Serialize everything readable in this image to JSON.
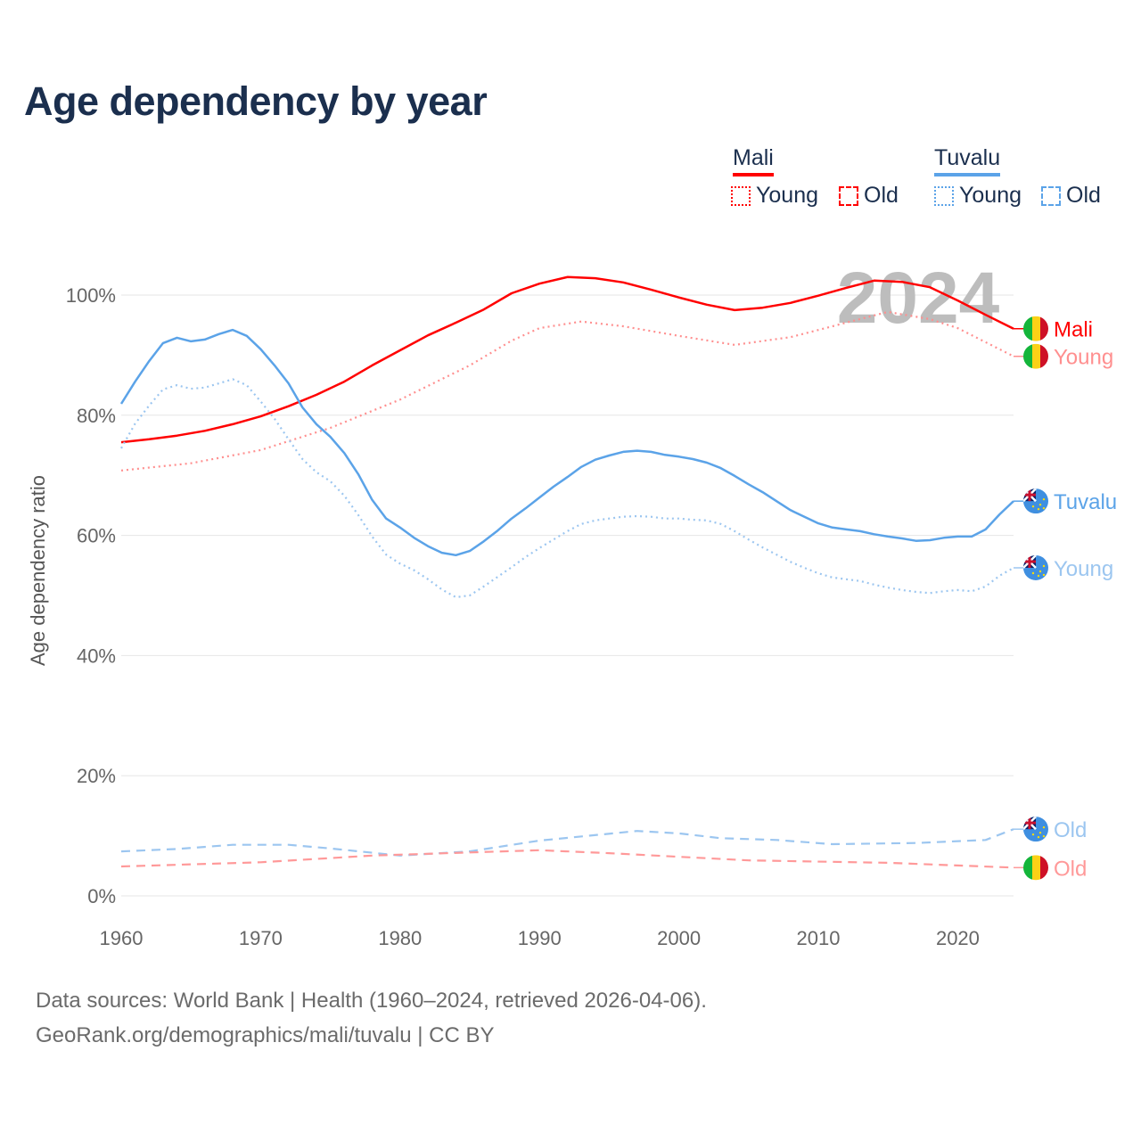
{
  "title": "Age dependency by year",
  "legend": {
    "countries": [
      {
        "name": "Mali",
        "color": "#ff0000",
        "items": [
          "Young",
          "Old"
        ]
      },
      {
        "name": "Tuvalu",
        "color": "#5ba3e8",
        "items": [
          "Young",
          "Old"
        ]
      }
    ]
  },
  "footer": {
    "line1": "Data sources: World Bank | Health (1960–2024, retrieved 2026-04-06).",
    "line2": "GeoRank.org/demographics/mali/tuvalu | CC BY"
  },
  "chart_data": {
    "type": "line",
    "title": "Age dependency by year",
    "xlabel": "",
    "ylabel": "Age dependency ratio",
    "xlim": [
      1960,
      2024
    ],
    "ylim": [
      0,
      110
    ],
    "x_ticks": [
      "1960",
      "1970",
      "1980",
      "1990",
      "2000",
      "2010",
      "2020"
    ],
    "y_ticks": [
      "0%",
      "20%",
      "40%",
      "60%",
      "80%",
      "100%"
    ],
    "year_watermark": "2024",
    "grid": true,
    "legend_position": "top-right",
    "series": [
      {
        "name": "Mali",
        "label": "Mali",
        "color": "#ff0000",
        "style": "solid",
        "flag": "mali",
        "points": [
          [
            1960,
            75.5
          ],
          [
            1962,
            76
          ],
          [
            1964,
            76.6
          ],
          [
            1966,
            77.4
          ],
          [
            1968,
            78.5
          ],
          [
            1970,
            79.8
          ],
          [
            1972,
            81.5
          ],
          [
            1974,
            83.4
          ],
          [
            1976,
            85.6
          ],
          [
            1978,
            88.3
          ],
          [
            1980,
            90.8
          ],
          [
            1982,
            93.3
          ],
          [
            1984,
            95.4
          ],
          [
            1986,
            97.6
          ],
          [
            1988,
            100.3
          ],
          [
            1990,
            101.9
          ],
          [
            1992,
            103
          ],
          [
            1994,
            102.8
          ],
          [
            1996,
            102.1
          ],
          [
            1998,
            100.9
          ],
          [
            2000,
            99.6
          ],
          [
            2002,
            98.4
          ],
          [
            2004,
            97.5
          ],
          [
            2006,
            97.9
          ],
          [
            2008,
            98.7
          ],
          [
            2010,
            99.9
          ],
          [
            2012,
            101.2
          ],
          [
            2014,
            102.4
          ],
          [
            2016,
            102.2
          ],
          [
            2018,
            101.3
          ],
          [
            2020,
            99.1
          ],
          [
            2022,
            96.7
          ],
          [
            2024,
            94.4
          ]
        ]
      },
      {
        "name": "Mali Young",
        "label": "Young",
        "color": "#ff8f8f",
        "style": "dotted",
        "flag": "mali",
        "points": [
          [
            1960,
            70.8
          ],
          [
            1965,
            72
          ],
          [
            1970,
            74.2
          ],
          [
            1975,
            77.9
          ],
          [
            1980,
            82.6
          ],
          [
            1985,
            88.3
          ],
          [
            1988,
            92.4
          ],
          [
            1990,
            94.5
          ],
          [
            1993,
            95.6
          ],
          [
            1996,
            94.8
          ],
          [
            2000,
            93.2
          ],
          [
            2004,
            91.7
          ],
          [
            2008,
            93
          ],
          [
            2012,
            95.4
          ],
          [
            2015,
            97.2
          ],
          [
            2018,
            96
          ],
          [
            2020,
            94.5
          ],
          [
            2024,
            89.8
          ]
        ]
      },
      {
        "name": "Tuvalu",
        "label": "Tuvalu",
        "color": "#5ba3e8",
        "style": "solid",
        "flag": "tuvalu",
        "points": [
          [
            1960,
            81.9
          ],
          [
            1961,
            85.6
          ],
          [
            1962,
            89
          ],
          [
            1963,
            92
          ],
          [
            1964,
            92.9
          ],
          [
            1965,
            92.3
          ],
          [
            1966,
            92.6
          ],
          [
            1967,
            93.5
          ],
          [
            1968,
            94.2
          ],
          [
            1969,
            93.2
          ],
          [
            1970,
            91
          ],
          [
            1971,
            88.3
          ],
          [
            1972,
            85.3
          ],
          [
            1973,
            81.3
          ],
          [
            1974,
            78.5
          ],
          [
            1975,
            76.4
          ],
          [
            1976,
            73.7
          ],
          [
            1977,
            70.2
          ],
          [
            1978,
            65.9
          ],
          [
            1979,
            62.8
          ],
          [
            1980,
            61.3
          ],
          [
            1981,
            59.6
          ],
          [
            1982,
            58.2
          ],
          [
            1983,
            57.1
          ],
          [
            1984,
            56.7
          ],
          [
            1985,
            57.4
          ],
          [
            1986,
            59
          ],
          [
            1987,
            60.8
          ],
          [
            1988,
            62.8
          ],
          [
            1989,
            64.5
          ],
          [
            1990,
            66.3
          ],
          [
            1991,
            68.1
          ],
          [
            1992,
            69.7
          ],
          [
            1993,
            71.4
          ],
          [
            1994,
            72.6
          ],
          [
            1995,
            73.3
          ],
          [
            1996,
            73.9
          ],
          [
            1997,
            74.1
          ],
          [
            1998,
            73.9
          ],
          [
            1999,
            73.4
          ],
          [
            2000,
            73.1
          ],
          [
            2001,
            72.7
          ],
          [
            2002,
            72.1
          ],
          [
            2003,
            71.2
          ],
          [
            2004,
            69.9
          ],
          [
            2005,
            68.5
          ],
          [
            2006,
            67.2
          ],
          [
            2007,
            65.7
          ],
          [
            2008,
            64.2
          ],
          [
            2009,
            63.1
          ],
          [
            2010,
            62
          ],
          [
            2011,
            61.3
          ],
          [
            2012,
            61
          ],
          [
            2013,
            60.7
          ],
          [
            2014,
            60.2
          ],
          [
            2015,
            59.8
          ],
          [
            2016,
            59.5
          ],
          [
            2017,
            59.1
          ],
          [
            2018,
            59.2
          ],
          [
            2019,
            59.6
          ],
          [
            2020,
            59.8
          ],
          [
            2021,
            59.8
          ],
          [
            2022,
            61
          ],
          [
            2023,
            63.5
          ],
          [
            2024,
            65.7
          ]
        ]
      },
      {
        "name": "Tuvalu Young",
        "label": "Young",
        "color": "#9cc6f0",
        "style": "dotted",
        "flag": "tuvalu",
        "points": [
          [
            1960,
            74.5
          ],
          [
            1961,
            78.6
          ],
          [
            1962,
            81.6
          ],
          [
            1963,
            84.3
          ],
          [
            1964,
            85
          ],
          [
            1965,
            84.4
          ],
          [
            1966,
            84.6
          ],
          [
            1967,
            85.3
          ],
          [
            1968,
            86
          ],
          [
            1969,
            85
          ],
          [
            1970,
            82.3
          ],
          [
            1971,
            79.4
          ],
          [
            1972,
            76
          ],
          [
            1973,
            72.7
          ],
          [
            1974,
            70.5
          ],
          [
            1975,
            69
          ],
          [
            1976,
            66.6
          ],
          [
            1977,
            63.4
          ],
          [
            1978,
            59.8
          ],
          [
            1979,
            56.8
          ],
          [
            1980,
            55.3
          ],
          [
            1981,
            54.2
          ],
          [
            1982,
            52.7
          ],
          [
            1983,
            51
          ],
          [
            1984,
            49.7
          ],
          [
            1985,
            50
          ],
          [
            1986,
            51.5
          ],
          [
            1987,
            53.1
          ],
          [
            1988,
            54.7
          ],
          [
            1989,
            56.4
          ],
          [
            1990,
            57.9
          ],
          [
            1991,
            59.3
          ],
          [
            1992,
            60.7
          ],
          [
            1993,
            61.9
          ],
          [
            1994,
            62.5
          ],
          [
            1995,
            62.8
          ],
          [
            1996,
            63.1
          ],
          [
            1997,
            63.2
          ],
          [
            1998,
            63.1
          ],
          [
            1999,
            62.8
          ],
          [
            2000,
            62.8
          ],
          [
            2001,
            62.6
          ],
          [
            2002,
            62.5
          ],
          [
            2003,
            61.9
          ],
          [
            2004,
            60.7
          ],
          [
            2005,
            59.3
          ],
          [
            2006,
            58
          ],
          [
            2007,
            56.8
          ],
          [
            2008,
            55.6
          ],
          [
            2009,
            54.6
          ],
          [
            2010,
            53.7
          ],
          [
            2011,
            53
          ],
          [
            2012,
            52.7
          ],
          [
            2013,
            52.4
          ],
          [
            2014,
            51.8
          ],
          [
            2015,
            51.3
          ],
          [
            2016,
            50.9
          ],
          [
            2017,
            50.6
          ],
          [
            2018,
            50.4
          ],
          [
            2019,
            50.7
          ],
          [
            2020,
            50.9
          ],
          [
            2021,
            50.7
          ],
          [
            2022,
            51.5
          ],
          [
            2023,
            53.3
          ],
          [
            2024,
            54.6
          ]
        ]
      },
      {
        "name": "Tuvalu Old",
        "label": "Old",
        "color": "#9cc6f0",
        "style": "dashed",
        "flag": "tuvalu",
        "points": [
          [
            1960,
            7.4
          ],
          [
            1964,
            7.8
          ],
          [
            1968,
            8.5
          ],
          [
            1972,
            8.5
          ],
          [
            1975,
            7.9
          ],
          [
            1980,
            6.7
          ],
          [
            1985,
            7.4
          ],
          [
            1990,
            9.2
          ],
          [
            1997,
            10.8
          ],
          [
            2000,
            10.4
          ],
          [
            2003,
            9.6
          ],
          [
            2007,
            9.3
          ],
          [
            2011,
            8.6
          ],
          [
            2017,
            8.8
          ],
          [
            2022,
            9.3
          ],
          [
            2024,
            11.1
          ]
        ]
      },
      {
        "name": "Mali Old",
        "label": "Old",
        "color": "#ff9999",
        "style": "dashed",
        "flag": "mali",
        "points": [
          [
            1960,
            4.9
          ],
          [
            1970,
            5.6
          ],
          [
            1978,
            6.7
          ],
          [
            1990,
            7.6
          ],
          [
            1995,
            7.1
          ],
          [
            2005,
            5.9
          ],
          [
            2015,
            5.5
          ],
          [
            2024,
            4.7
          ]
        ]
      }
    ]
  }
}
